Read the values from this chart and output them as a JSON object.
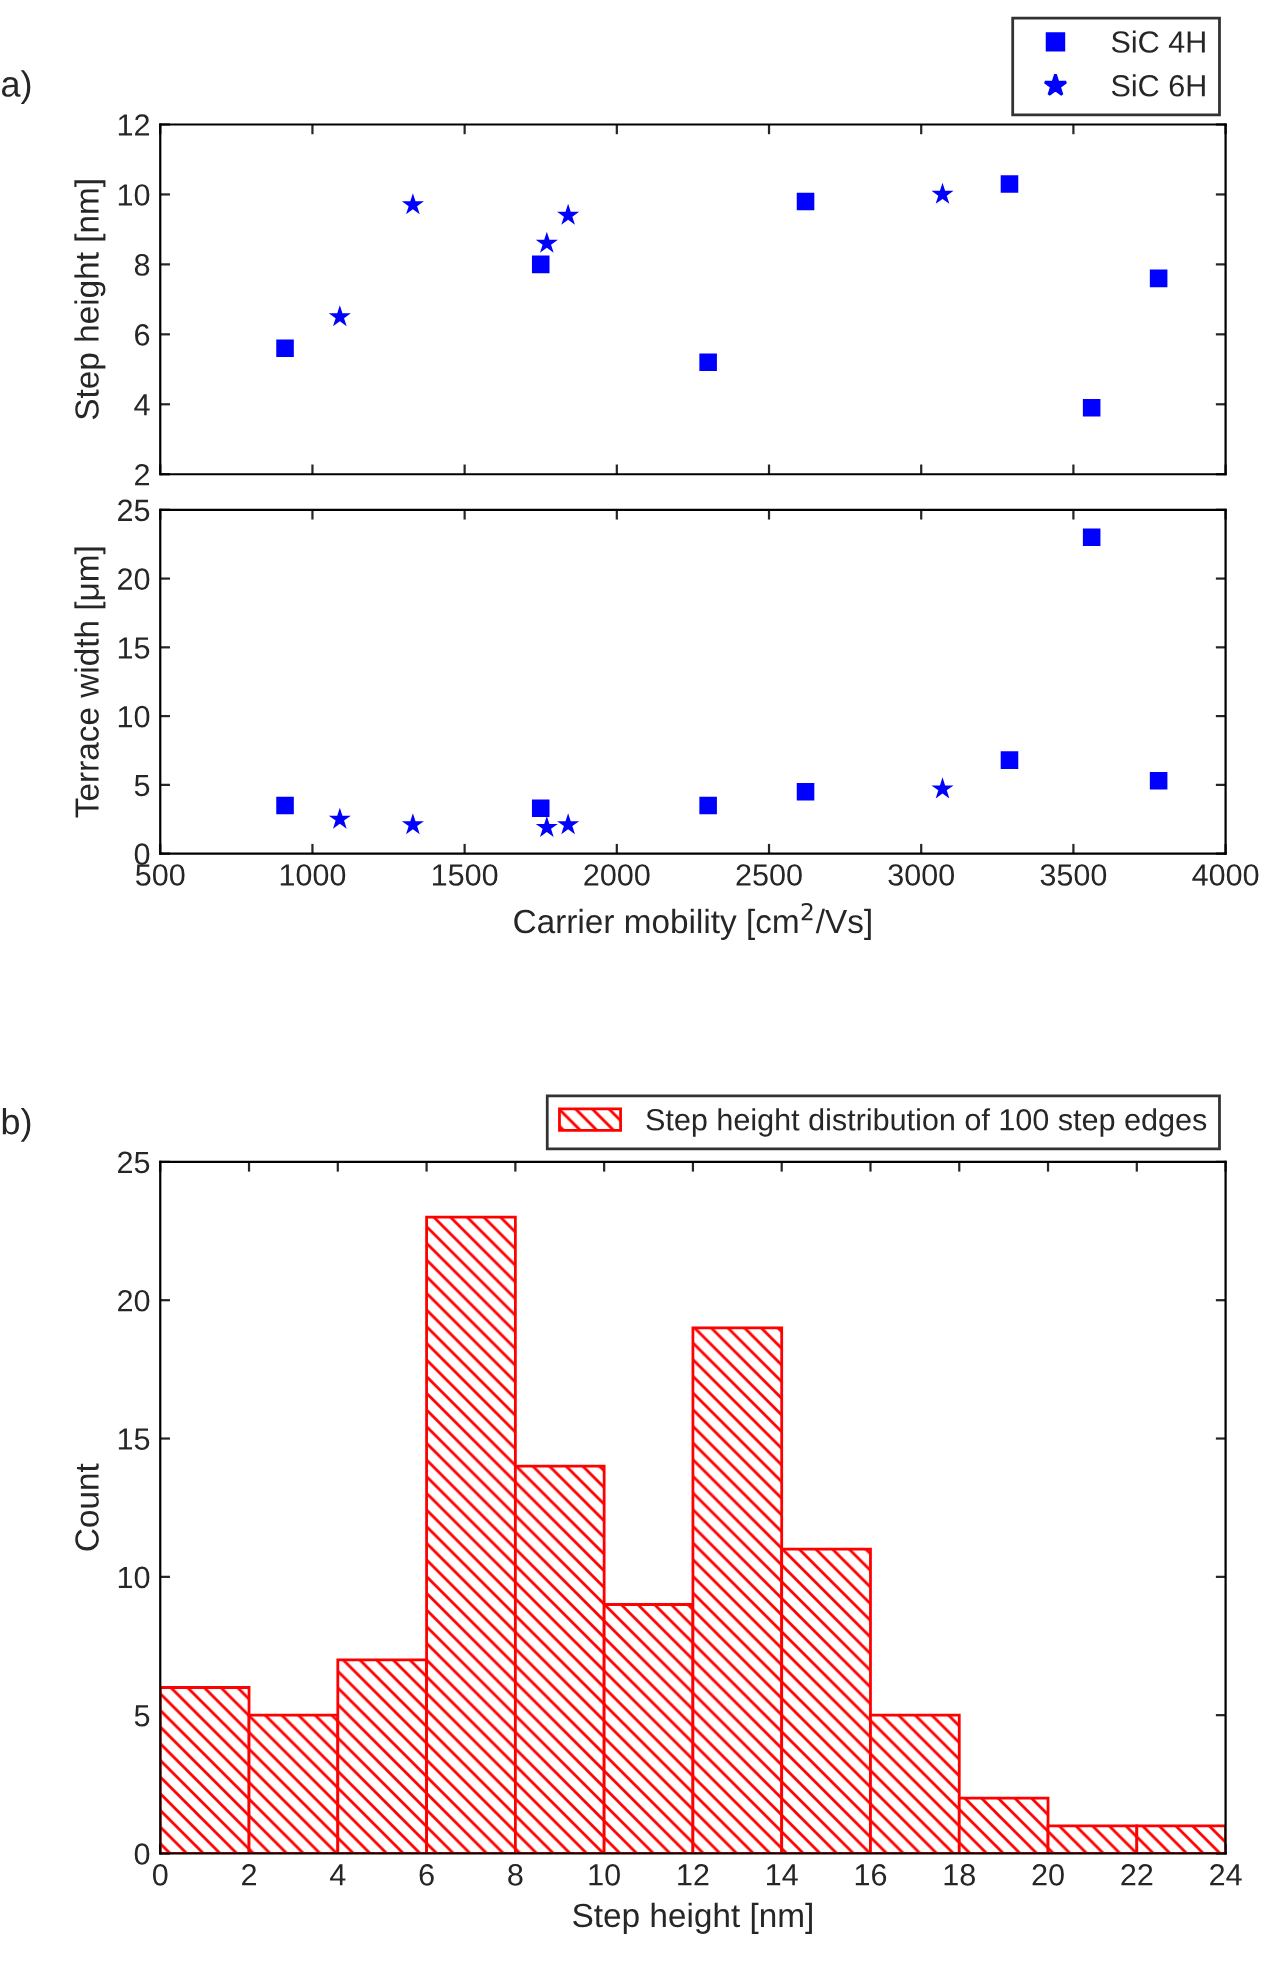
{
  "chart_data": [
    {
      "type": "scatter",
      "ylabel": "Step height [nm]",
      "annotations": [
        "a)"
      ],
      "xlim": [
        500,
        4000
      ],
      "xticks": [
        500,
        1000,
        1500,
        2000,
        2500,
        3000,
        3500,
        4000
      ],
      "ylim": [
        2,
        12
      ],
      "yticks": [
        2,
        4,
        6,
        8,
        10,
        12
      ],
      "tick_labels": "y",
      "legend": "top right",
      "grid": false,
      "series": [
        {
          "name": "SiC 4H",
          "color": "#0000ff",
          "marker": "square",
          "x": [
            910,
            1750,
            2300,
            2620,
            3290,
            3560,
            3780
          ],
          "values": [
            5.6,
            8.0,
            5.2,
            9.8,
            10.3,
            3.9,
            7.6
          ]
        },
        {
          "name": "SiC 6H",
          "color": "#0000ff",
          "marker": "star",
          "x": [
            1090,
            1330,
            1770,
            1840,
            3070
          ],
          "values": [
            6.5,
            9.7,
            8.6,
            9.4,
            10.0
          ]
        }
      ]
    },
    {
      "type": "scatter",
      "ylabel": "Terrace width [μm]",
      "xlabel": "Carrier mobility [cm$^{2}$/Vs]",
      "xlim": [
        500,
        4000
      ],
      "xticks": [
        500,
        1000,
        1500,
        2000,
        2500,
        3000,
        3500,
        4000
      ],
      "ylim": [
        0,
        25
      ],
      "yticks": [
        0,
        5,
        10,
        15,
        20,
        25
      ],
      "grid": false,
      "series": [
        {
          "color": "#0000ff",
          "marker": "square",
          "x": [
            910,
            1750,
            2300,
            2620,
            3290,
            3560,
            3780
          ],
          "values": [
            3.5,
            3.3,
            3.5,
            4.5,
            6.8,
            23,
            5.3
          ]
        },
        {
          "color": "#0000ff",
          "marker": "star",
          "x": [
            1090,
            1330,
            1770,
            1840,
            3070
          ],
          "values": [
            2.5,
            2.1,
            1.9,
            2.1,
            4.7
          ]
        }
      ]
    },
    {
      "type": "histogram",
      "bins": [
        0,
        2,
        4,
        6,
        8,
        10,
        12,
        14,
        16,
        18,
        20,
        22,
        24
      ],
      "xlabel": "Step height [nm]",
      "ylabel": "Count",
      "annotations": [
        "b)"
      ],
      "xlim": [
        0,
        24
      ],
      "xticks": [
        0,
        2,
        4,
        6,
        8,
        10,
        12,
        14,
        16,
        18,
        20,
        22,
        24
      ],
      "ylim": [
        0,
        25
      ],
      "yticks": [
        0,
        5,
        10,
        15,
        20,
        25
      ],
      "legend": "top right",
      "grid": false,
      "series": [
        {
          "name": "Step height distribution of 100 step edges",
          "color": "#ff0000",
          "values": [
            6,
            5,
            7,
            23,
            14,
            9,
            19,
            11,
            5,
            2,
            1,
            1
          ]
        }
      ]
    }
  ]
}
